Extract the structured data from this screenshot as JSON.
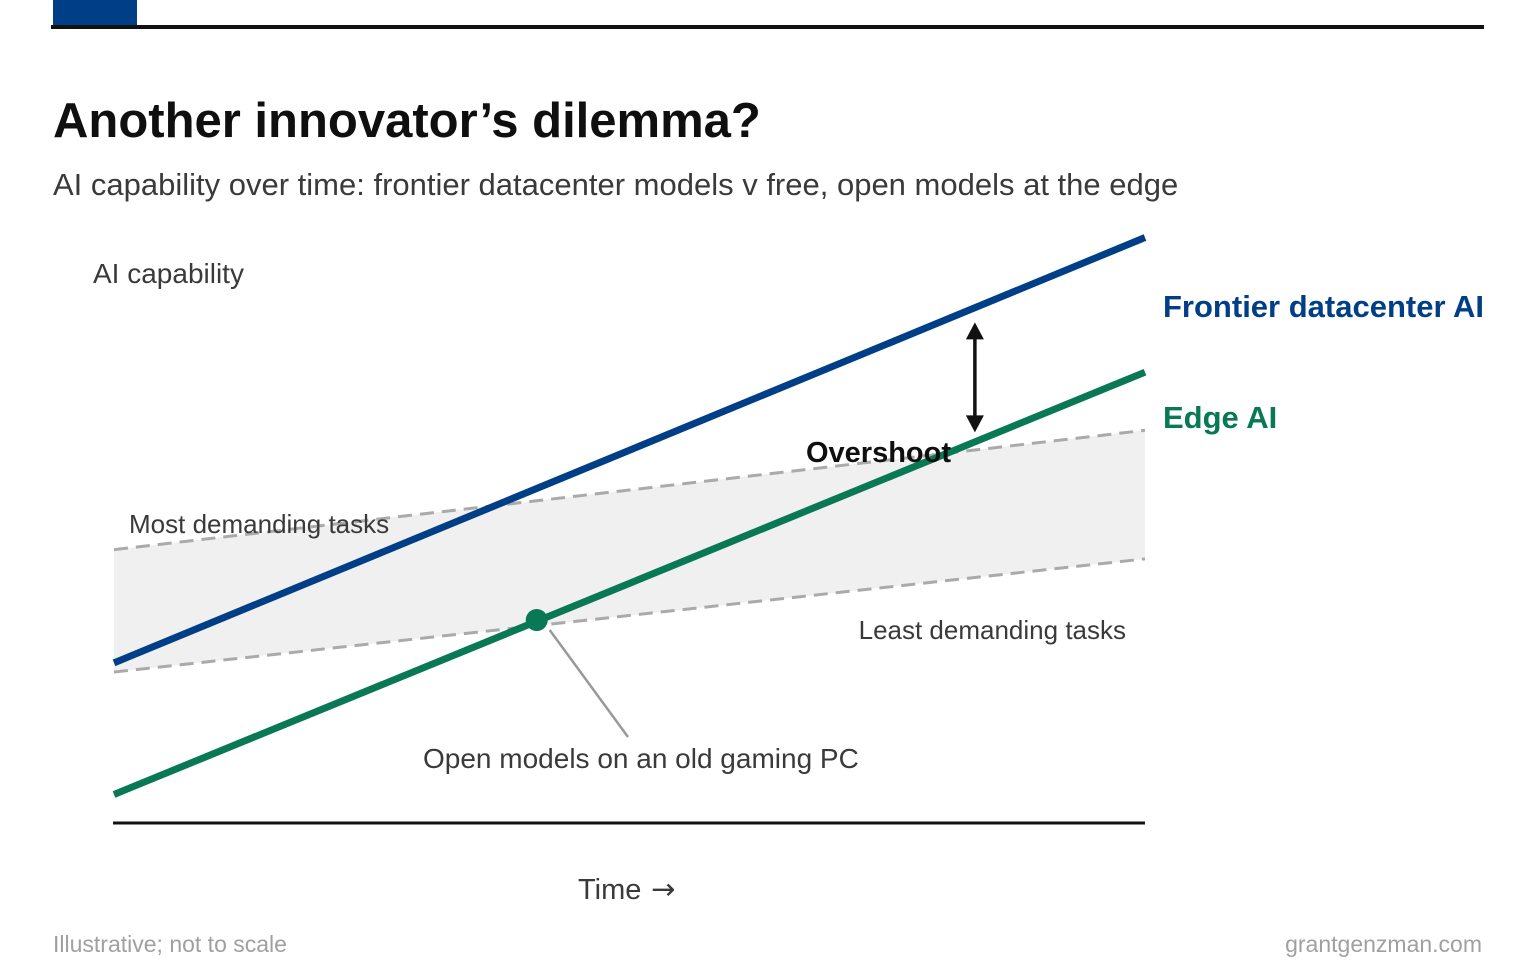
{
  "header": {
    "title": "Another innovator’s dilemma?",
    "subtitle": "AI capability over time: frontier datacenter models v free, open models at the edge"
  },
  "footer": {
    "note": "Illustrative; not to scale",
    "source": "grantgenzman.com"
  },
  "colors": {
    "accent": "#003f87",
    "frontier": "#003f87",
    "edge": "#087855",
    "band": "#f0f0f0",
    "dashed": "#aaaaaa"
  },
  "chart_data": {
    "type": "line",
    "ylabel": "AI capability",
    "xlabel": "Time",
    "xlabel_arrow": "→",
    "xlim": [
      0,
      100
    ],
    "ylim": [
      0,
      100
    ],
    "grid": false,
    "series": [
      {
        "name": "Frontier datacenter AI",
        "x": [
          0,
          100
        ],
        "y": [
          26,
          95.5
        ]
      },
      {
        "name": "Edge AI",
        "x": [
          0,
          100
        ],
        "y": [
          4.5,
          73.5
        ]
      }
    ],
    "band": {
      "upper": {
        "label": "Most demanding tasks",
        "x": [
          0,
          100
        ],
        "y": [
          44.5,
          64
        ]
      },
      "lower": {
        "label": "Least demanding tasks",
        "x": [
          0,
          100
        ],
        "y": [
          24.5,
          43
        ]
      }
    },
    "annotations": [
      {
        "text": "Overshoot",
        "type": "double-arrow",
        "x": 83.5,
        "y_from": 64,
        "y_to": 80
      },
      {
        "text": "Open models on an old gaming PC",
        "type": "point",
        "x": 41,
        "y": 33
      }
    ]
  }
}
